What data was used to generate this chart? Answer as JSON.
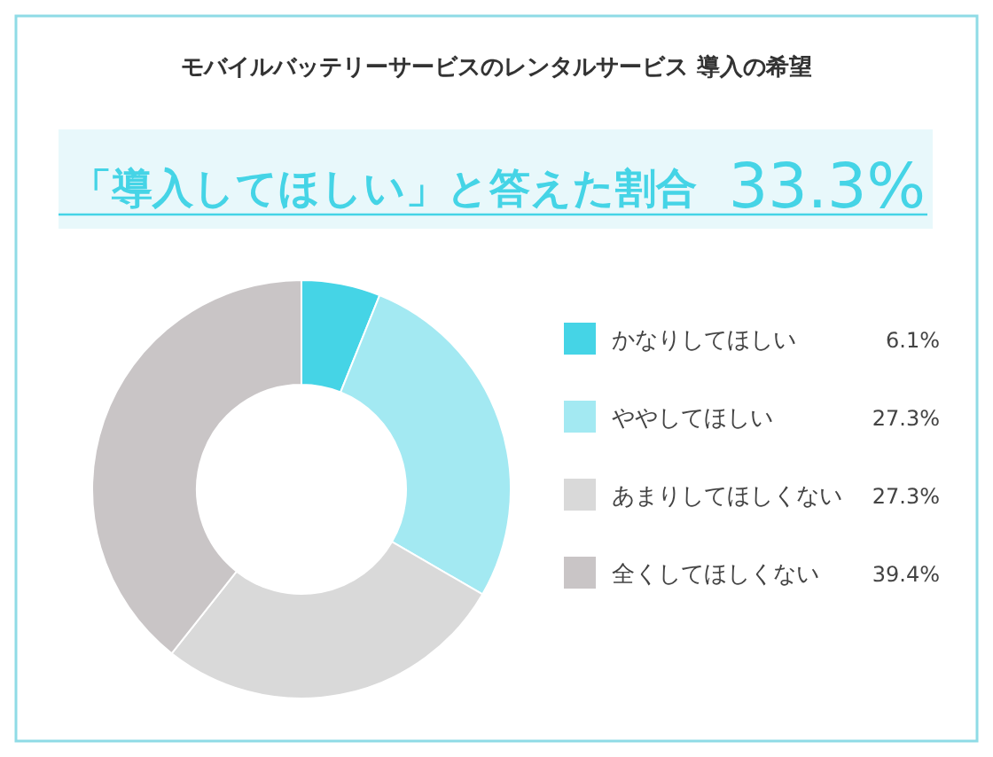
{
  "chart_data": {
    "type": "donut",
    "title": "モバイルバッテリーサービスのレンタルサービス 導入の希望",
    "subtitle": "「導入してほしい」と答えた割合",
    "annotations": [
      "33.3%"
    ],
    "categories": [
      "かなりしてほしい",
      "ややしてほしい",
      "あまりしてほしくない",
      "全くしてほしくない"
    ],
    "values": [
      6.1,
      27.3,
      27.3,
      39.4
    ],
    "value_labels": [
      "6.1%",
      "27.3%",
      "27.3%",
      "39.4%"
    ],
    "colors": [
      "#45d4e6",
      "#a3e9f2",
      "#d9d9d9",
      "#c9c5c6"
    ],
    "legend": "right"
  }
}
